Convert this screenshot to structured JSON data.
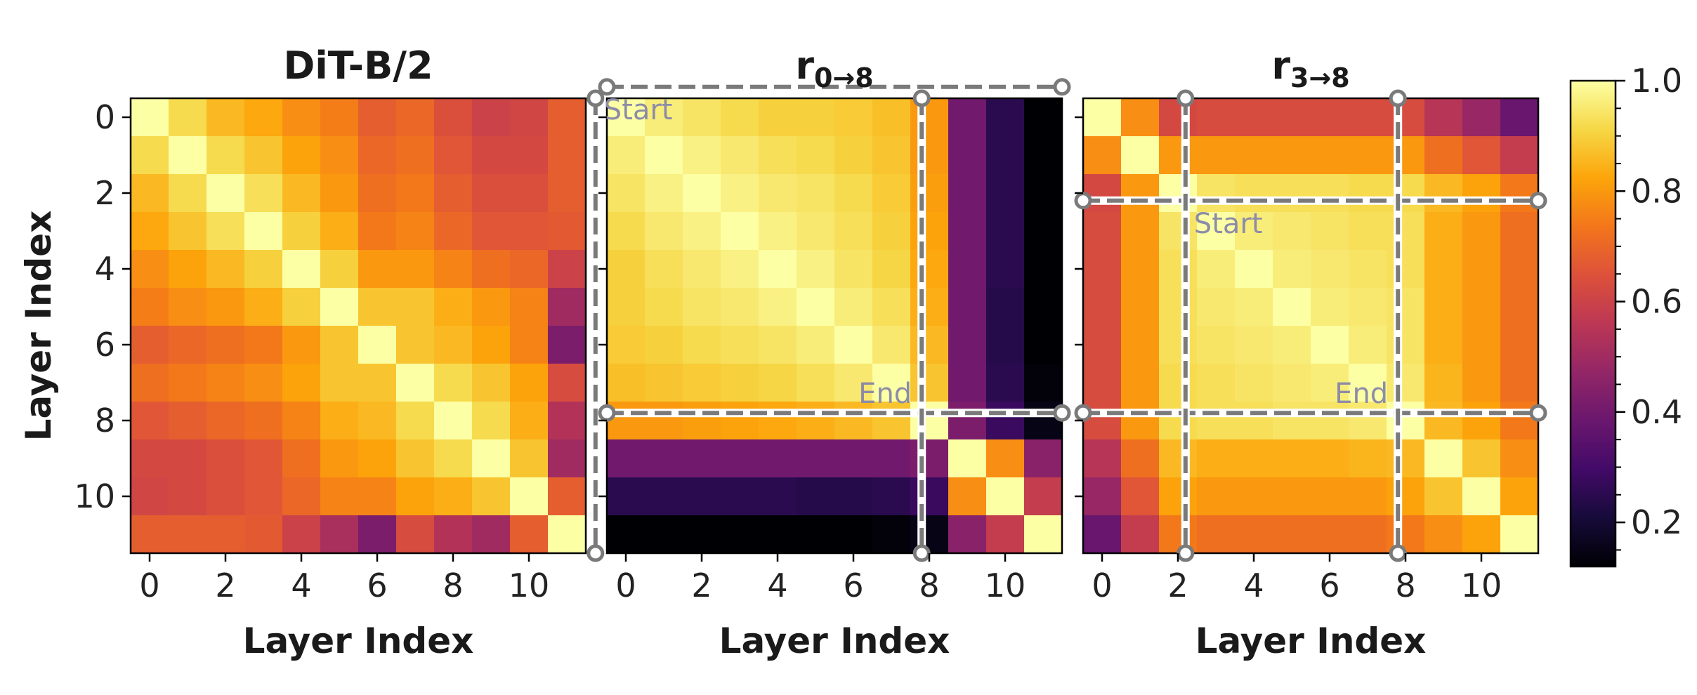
{
  "chart_data": [
    {
      "type": "heatmap",
      "title": "DiT-B/2",
      "xlabel": "Layer Index",
      "ylabel": "Layer Index",
      "xticks": [
        "0",
        "2",
        "4",
        "6",
        "8",
        "10"
      ],
      "yticks": [
        "0",
        "2",
        "4",
        "6",
        "8",
        "10"
      ],
      "matrix": [
        [
          1.0,
          0.92,
          0.86,
          0.83,
          0.78,
          0.75,
          0.68,
          0.7,
          0.64,
          0.6,
          0.61,
          0.68
        ],
        [
          0.92,
          1.0,
          0.92,
          0.88,
          0.82,
          0.78,
          0.7,
          0.72,
          0.66,
          0.62,
          0.62,
          0.68
        ],
        [
          0.86,
          0.92,
          1.0,
          0.93,
          0.86,
          0.8,
          0.72,
          0.74,
          0.68,
          0.64,
          0.64,
          0.68
        ],
        [
          0.83,
          0.88,
          0.93,
          1.0,
          0.9,
          0.84,
          0.74,
          0.76,
          0.7,
          0.66,
          0.66,
          0.67
        ],
        [
          0.78,
          0.82,
          0.86,
          0.9,
          1.0,
          0.9,
          0.8,
          0.8,
          0.76,
          0.72,
          0.7,
          0.6
        ],
        [
          0.75,
          0.78,
          0.8,
          0.84,
          0.9,
          1.0,
          0.88,
          0.88,
          0.84,
          0.8,
          0.76,
          0.5
        ],
        [
          0.68,
          0.7,
          0.72,
          0.74,
          0.8,
          0.88,
          1.0,
          0.88,
          0.86,
          0.82,
          0.76,
          0.42
        ],
        [
          0.72,
          0.74,
          0.76,
          0.78,
          0.82,
          0.88,
          0.88,
          1.0,
          0.92,
          0.88,
          0.82,
          0.63
        ],
        [
          0.66,
          0.68,
          0.7,
          0.72,
          0.76,
          0.84,
          0.86,
          0.92,
          1.0,
          0.92,
          0.84,
          0.54
        ],
        [
          0.62,
          0.62,
          0.64,
          0.66,
          0.72,
          0.8,
          0.82,
          0.88,
          0.92,
          1.0,
          0.88,
          0.5
        ],
        [
          0.61,
          0.62,
          0.64,
          0.66,
          0.7,
          0.76,
          0.76,
          0.82,
          0.84,
          0.88,
          1.0,
          0.68
        ],
        [
          0.68,
          0.68,
          0.68,
          0.67,
          0.6,
          0.52,
          0.42,
          0.63,
          0.54,
          0.5,
          0.68,
          1.0
        ]
      ]
    },
    {
      "type": "heatmap",
      "title": "r",
      "title_sub": "0→8",
      "xlabel": "Layer Index",
      "xticks": [
        "0",
        "2",
        "4",
        "6",
        "8",
        "10"
      ],
      "annotations": [
        {
          "text": "Start",
          "row": 0,
          "col": 0
        },
        {
          "text": "End",
          "row": 8,
          "col": 8
        }
      ],
      "region": [
        0,
        8
      ],
      "matrix": [
        [
          1.0,
          0.96,
          0.94,
          0.92,
          0.9,
          0.9,
          0.89,
          0.87,
          0.8,
          0.4,
          0.25,
          0.12
        ],
        [
          0.96,
          1.0,
          0.97,
          0.95,
          0.93,
          0.92,
          0.9,
          0.88,
          0.8,
          0.4,
          0.25,
          0.12
        ],
        [
          0.94,
          0.97,
          1.0,
          0.97,
          0.95,
          0.94,
          0.92,
          0.89,
          0.81,
          0.4,
          0.25,
          0.12
        ],
        [
          0.92,
          0.95,
          0.97,
          1.0,
          0.97,
          0.95,
          0.93,
          0.9,
          0.82,
          0.4,
          0.25,
          0.12
        ],
        [
          0.9,
          0.93,
          0.95,
          0.97,
          1.0,
          0.97,
          0.94,
          0.91,
          0.83,
          0.4,
          0.25,
          0.12
        ],
        [
          0.9,
          0.92,
          0.94,
          0.95,
          0.97,
          1.0,
          0.96,
          0.93,
          0.84,
          0.4,
          0.24,
          0.12
        ],
        [
          0.89,
          0.9,
          0.92,
          0.93,
          0.94,
          0.96,
          1.0,
          0.95,
          0.86,
          0.4,
          0.24,
          0.12
        ],
        [
          0.87,
          0.88,
          0.89,
          0.9,
          0.91,
          0.93,
          0.95,
          1.0,
          0.88,
          0.4,
          0.25,
          0.13
        ],
        [
          0.8,
          0.8,
          0.81,
          0.82,
          0.83,
          0.84,
          0.86,
          0.88,
          1.0,
          0.42,
          0.28,
          0.15
        ],
        [
          0.4,
          0.4,
          0.4,
          0.4,
          0.4,
          0.4,
          0.4,
          0.4,
          0.42,
          1.0,
          0.78,
          0.45
        ],
        [
          0.25,
          0.25,
          0.25,
          0.25,
          0.25,
          0.24,
          0.24,
          0.25,
          0.28,
          0.78,
          1.0,
          0.58
        ],
        [
          0.12,
          0.12,
          0.12,
          0.12,
          0.12,
          0.12,
          0.12,
          0.13,
          0.15,
          0.45,
          0.58,
          1.0
        ]
      ]
    },
    {
      "type": "heatmap",
      "title": "r",
      "title_sub": "3→8",
      "xlabel": "Layer Index",
      "xticks": [
        "0",
        "2",
        "4",
        "6",
        "8",
        "10"
      ],
      "annotations": [
        {
          "text": "Start",
          "row": 3,
          "col": 3
        },
        {
          "text": "End",
          "row": 8,
          "col": 8
        }
      ],
      "region": [
        3,
        8
      ],
      "matrix": [
        [
          1.0,
          0.78,
          0.62,
          0.63,
          0.63,
          0.63,
          0.63,
          0.63,
          0.63,
          0.55,
          0.48,
          0.38
        ],
        [
          0.78,
          1.0,
          0.8,
          0.8,
          0.8,
          0.8,
          0.8,
          0.8,
          0.8,
          0.72,
          0.66,
          0.58
        ],
        [
          0.62,
          0.8,
          1.0,
          0.94,
          0.93,
          0.93,
          0.93,
          0.92,
          0.92,
          0.86,
          0.82,
          0.74
        ],
        [
          0.63,
          0.8,
          0.94,
          1.0,
          0.96,
          0.95,
          0.94,
          0.93,
          0.93,
          0.84,
          0.8,
          0.72
        ],
        [
          0.63,
          0.8,
          0.93,
          0.96,
          1.0,
          0.96,
          0.95,
          0.94,
          0.93,
          0.84,
          0.8,
          0.72
        ],
        [
          0.63,
          0.8,
          0.93,
          0.95,
          0.96,
          1.0,
          0.96,
          0.95,
          0.94,
          0.84,
          0.8,
          0.72
        ],
        [
          0.63,
          0.8,
          0.93,
          0.94,
          0.95,
          0.96,
          1.0,
          0.96,
          0.94,
          0.84,
          0.8,
          0.72
        ],
        [
          0.63,
          0.8,
          0.92,
          0.93,
          0.94,
          0.95,
          0.96,
          1.0,
          0.95,
          0.85,
          0.8,
          0.72
        ],
        [
          0.63,
          0.8,
          0.92,
          0.93,
          0.93,
          0.94,
          0.94,
          0.95,
          1.0,
          0.86,
          0.82,
          0.74
        ],
        [
          0.55,
          0.72,
          0.86,
          0.84,
          0.84,
          0.84,
          0.84,
          0.85,
          0.86,
          1.0,
          0.88,
          0.78
        ],
        [
          0.48,
          0.66,
          0.82,
          0.8,
          0.8,
          0.8,
          0.8,
          0.8,
          0.82,
          0.88,
          1.0,
          0.82
        ],
        [
          0.38,
          0.58,
          0.74,
          0.72,
          0.72,
          0.72,
          0.72,
          0.72,
          0.74,
          0.78,
          0.82,
          1.0
        ]
      ]
    }
  ],
  "colorbar": {
    "colormap": "inferno",
    "range": [
      0.12,
      1.0
    ],
    "ticks": [
      "1.0",
      "0.8",
      "0.6",
      "0.4",
      "0.2"
    ],
    "tick_values": [
      1.0,
      0.8,
      0.6,
      0.4,
      0.2
    ]
  }
}
